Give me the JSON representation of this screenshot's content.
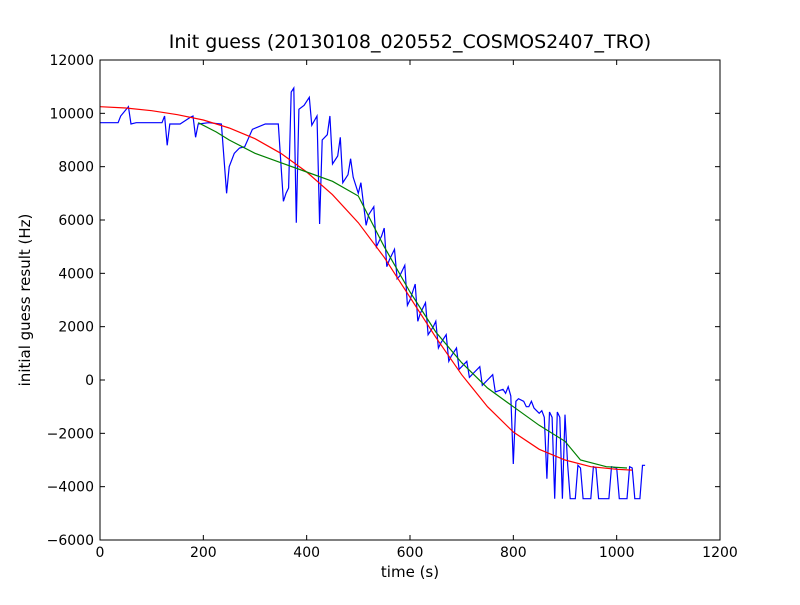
{
  "chart_data": {
    "type": "line",
    "title": "Init guess (20130108_020552_COSMOS2407_TRO)",
    "xlabel": "time (s)",
    "ylabel": "initial guess result (Hz)",
    "xlim": [
      0,
      1200
    ],
    "ylim": [
      -6000,
      12000
    ],
    "x_ticks": [
      0,
      200,
      400,
      600,
      800,
      1000,
      1200
    ],
    "x_tick_labels": [
      "0",
      "200",
      "400",
      "600",
      "800",
      "1000",
      "1200"
    ],
    "y_ticks": [
      -6000,
      -4000,
      -2000,
      0,
      2000,
      4000,
      6000,
      8000,
      10000,
      12000
    ],
    "y_tick_labels": [
      "−6000",
      "−4000",
      "−2000",
      "0",
      "2000",
      "4000",
      "6000",
      "8000",
      "10000",
      "12000"
    ],
    "grid": false,
    "legend": "none",
    "series": [
      {
        "color": "#0000ff",
        "points": [
          [
            0,
            9650
          ],
          [
            35,
            9650
          ],
          [
            40,
            9900
          ],
          [
            55,
            10250
          ],
          [
            60,
            9600
          ],
          [
            70,
            9650
          ],
          [
            120,
            9650
          ],
          [
            125,
            9900
          ],
          [
            130,
            8800
          ],
          [
            135,
            9600
          ],
          [
            155,
            9600
          ],
          [
            175,
            9850
          ],
          [
            180,
            9900
          ],
          [
            185,
            9100
          ],
          [
            190,
            9600
          ],
          [
            210,
            9650
          ],
          [
            235,
            9600
          ],
          [
            245,
            7000
          ],
          [
            250,
            8000
          ],
          [
            260,
            8500
          ],
          [
            270,
            8700
          ],
          [
            280,
            8750
          ],
          [
            295,
            9400
          ],
          [
            320,
            9600
          ],
          [
            345,
            9600
          ],
          [
            355,
            6700
          ],
          [
            360,
            7000
          ],
          [
            365,
            7200
          ],
          [
            370,
            10800
          ],
          [
            375,
            10950
          ],
          [
            380,
            5900
          ],
          [
            385,
            10150
          ],
          [
            395,
            10300
          ],
          [
            405,
            10600
          ],
          [
            410,
            9550
          ],
          [
            420,
            9900
          ],
          [
            425,
            5850
          ],
          [
            430,
            9000
          ],
          [
            440,
            9200
          ],
          [
            445,
            9900
          ],
          [
            450,
            8100
          ],
          [
            460,
            8400
          ],
          [
            465,
            9100
          ],
          [
            470,
            7400
          ],
          [
            480,
            7700
          ],
          [
            485,
            8300
          ],
          [
            490,
            7600
          ],
          [
            500,
            7000
          ],
          [
            505,
            7400
          ],
          [
            515,
            5800
          ],
          [
            520,
            6200
          ],
          [
            530,
            6500
          ],
          [
            535,
            5000
          ],
          [
            545,
            5400
          ],
          [
            550,
            5700
          ],
          [
            555,
            4250
          ],
          [
            560,
            4500
          ],
          [
            570,
            4900
          ],
          [
            575,
            3800
          ],
          [
            580,
            3900
          ],
          [
            590,
            4300
          ],
          [
            595,
            2800
          ],
          [
            600,
            3000
          ],
          [
            610,
            3600
          ],
          [
            615,
            2200
          ],
          [
            620,
            2500
          ],
          [
            630,
            2900
          ],
          [
            635,
            1700
          ],
          [
            645,
            2000
          ],
          [
            650,
            2200
          ],
          [
            655,
            1200
          ],
          [
            660,
            1400
          ],
          [
            670,
            1700
          ],
          [
            675,
            700
          ],
          [
            680,
            900
          ],
          [
            690,
            1200
          ],
          [
            695,
            400
          ],
          [
            700,
            500
          ],
          [
            710,
            700
          ],
          [
            715,
            100
          ],
          [
            725,
            300
          ],
          [
            735,
            500
          ],
          [
            740,
            -200
          ],
          [
            750,
            0
          ],
          [
            760,
            200
          ],
          [
            765,
            -450
          ],
          [
            780,
            -350
          ],
          [
            785,
            -500
          ],
          [
            790,
            -250
          ],
          [
            795,
            -600
          ],
          [
            800,
            -3150
          ],
          [
            805,
            -800
          ],
          [
            810,
            -700
          ],
          [
            820,
            -800
          ],
          [
            825,
            -1000
          ],
          [
            830,
            -1000
          ],
          [
            835,
            -800
          ],
          [
            840,
            -1050
          ],
          [
            845,
            -1150
          ],
          [
            850,
            -1250
          ],
          [
            855,
            -1150
          ],
          [
            860,
            -1400
          ],
          [
            865,
            -3700
          ],
          [
            870,
            -1200
          ],
          [
            875,
            -1400
          ],
          [
            880,
            -4450
          ],
          [
            885,
            -1200
          ],
          [
            890,
            -1400
          ],
          [
            895,
            -4450
          ],
          [
            900,
            -1300
          ],
          [
            905,
            -3150
          ],
          [
            910,
            -4450
          ],
          [
            920,
            -4450
          ],
          [
            925,
            -3200
          ],
          [
            930,
            -3300
          ],
          [
            935,
            -4450
          ],
          [
            950,
            -4450
          ],
          [
            955,
            -3250
          ],
          [
            960,
            -3300
          ],
          [
            965,
            -4450
          ],
          [
            985,
            -4450
          ],
          [
            990,
            -3250
          ],
          [
            1000,
            -3300
          ],
          [
            1005,
            -4450
          ],
          [
            1020,
            -4450
          ],
          [
            1025,
            -3250
          ],
          [
            1030,
            -3300
          ],
          [
            1035,
            -4450
          ],
          [
            1045,
            -4450
          ],
          [
            1050,
            -3200
          ],
          [
            1055,
            -3200
          ]
        ]
      },
      {
        "color": "#ff0000",
        "points": [
          [
            0,
            10250
          ],
          [
            50,
            10200
          ],
          [
            100,
            10100
          ],
          [
            150,
            9950
          ],
          [
            200,
            9750
          ],
          [
            250,
            9450
          ],
          [
            300,
            9050
          ],
          [
            350,
            8500
          ],
          [
            400,
            7800
          ],
          [
            450,
            6950
          ],
          [
            500,
            5900
          ],
          [
            550,
            4600
          ],
          [
            600,
            3100
          ],
          [
            650,
            1600
          ],
          [
            700,
            200
          ],
          [
            750,
            -1000
          ],
          [
            800,
            -1950
          ],
          [
            850,
            -2600
          ],
          [
            900,
            -3000
          ],
          [
            950,
            -3250
          ],
          [
            1000,
            -3350
          ],
          [
            1030,
            -3380
          ]
        ]
      },
      {
        "color": "#008000",
        "points": [
          [
            190,
            9650
          ],
          [
            225,
            9300
          ],
          [
            250,
            9000
          ],
          [
            300,
            8500
          ],
          [
            350,
            8150
          ],
          [
            400,
            7800
          ],
          [
            450,
            7450
          ],
          [
            500,
            6900
          ],
          [
            550,
            5000
          ],
          [
            600,
            3300
          ],
          [
            650,
            1800
          ],
          [
            700,
            650
          ],
          [
            750,
            -300
          ],
          [
            800,
            -1000
          ],
          [
            850,
            -1700
          ],
          [
            900,
            -2300
          ],
          [
            930,
            -3000
          ],
          [
            980,
            -3250
          ],
          [
            1020,
            -3300
          ]
        ]
      }
    ]
  }
}
